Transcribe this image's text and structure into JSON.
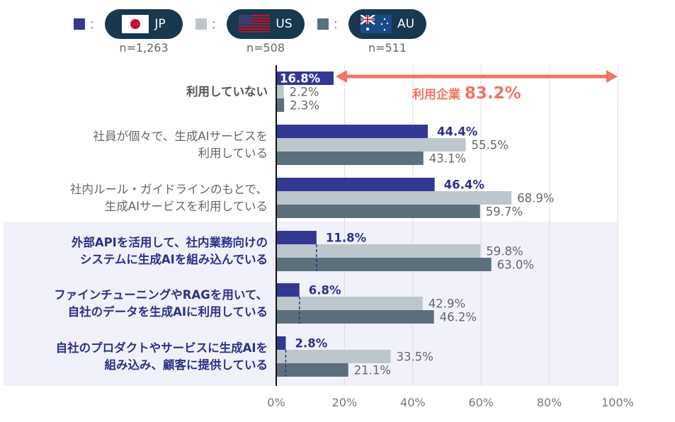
{
  "legend": [
    {
      "code": "JP",
      "n": "n=1,263",
      "color": "#333993",
      "flag": "japan-flag"
    },
    {
      "code": "US",
      "n": "n=508",
      "color": "#bcc6cd",
      "flag": "us-flag"
    },
    {
      "code": "AU",
      "n": "n=511",
      "color": "#5c6f7c",
      "flag": "australia-flag"
    }
  ],
  "colon": "：",
  "annotation": {
    "label": "利用企業",
    "value": "83.2%",
    "color": "#f07562"
  },
  "chart_data": {
    "type": "bar",
    "orientation": "horizontal",
    "categories": [
      "利用していない",
      "社員が個々で、生成AIサービスを\n利用している",
      "社内ルール・ガイドラインのもとで、\n生成AIサービスを利用している",
      "外部APIを活用して、社内業務向けの\nシステムに生成AIを組み込んでいる",
      "ファインチューニングやRAGを用いて、\n自社のデータを生成AIに利用している",
      "自社のプロダクトやサービスに生成AIを\n組み込み、顧客に提供している"
    ],
    "highlighted_categories": [
      3,
      4,
      5
    ],
    "series": [
      {
        "name": "JP",
        "values": [
          16.8,
          44.4,
          46.4,
          11.8,
          6.8,
          2.8
        ]
      },
      {
        "name": "US",
        "values": [
          2.2,
          55.5,
          68.9,
          59.8,
          42.9,
          33.5
        ]
      },
      {
        "name": "AU",
        "values": [
          2.3,
          43.1,
          59.7,
          63.0,
          46.2,
          21.1
        ]
      }
    ],
    "xlim": [
      0,
      100
    ],
    "xticks": [
      "0%",
      "20%",
      "40%",
      "60%",
      "80%",
      "100%"
    ],
    "grid": true,
    "legend": "top-left"
  }
}
